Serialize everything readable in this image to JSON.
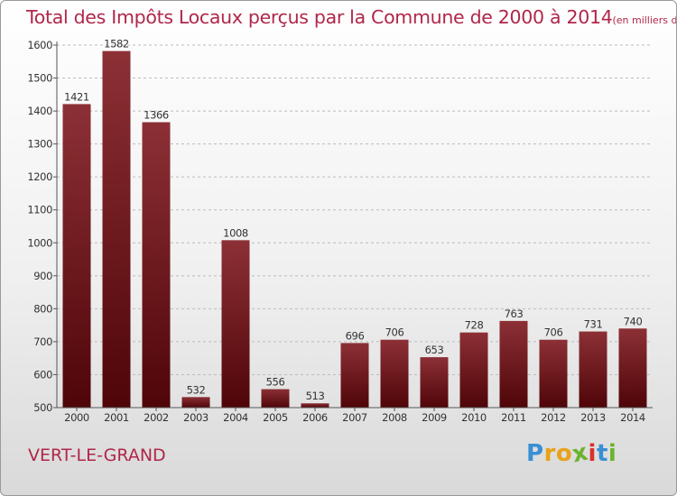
{
  "title": "Total des Impôts Locaux perçus par la Commune de 2000 à 2014",
  "unit": "(en milliers d'€)",
  "commune": "VERT-LE-GRAND",
  "logo": {
    "letters": [
      "P",
      "r",
      "o",
      "x",
      "i",
      "t",
      "i"
    ],
    "colors": [
      "#3a8fd4",
      "#e8a21a",
      "#e8a21a",
      "#6ab42e",
      "#d9302c",
      "#3a8fd4",
      "#6ab42e"
    ]
  },
  "colors": {
    "bar_top": "#8c3036",
    "bar_bottom": "#4f0508",
    "title": "#b0264a"
  },
  "chart_data": {
    "type": "bar",
    "categories": [
      "2000",
      "2001",
      "2002",
      "2003",
      "2004",
      "2005",
      "2006",
      "2007",
      "2008",
      "2009",
      "2010",
      "2011",
      "2012",
      "2013",
      "2014"
    ],
    "values": [
      1421,
      1582,
      1366,
      532,
      1008,
      556,
      513,
      696,
      706,
      653,
      728,
      763,
      706,
      731,
      740
    ],
    "title": "Total des Impôts Locaux perçus par la Commune de 2000 à 2014",
    "xlabel": "",
    "ylabel": "",
    "ylim": [
      500,
      1600
    ],
    "yticks": [
      500,
      600,
      700,
      800,
      900,
      1000,
      1100,
      1200,
      1300,
      1400,
      1500,
      1600
    ],
    "grid": "horizontal dashed",
    "data_labels": true
  }
}
